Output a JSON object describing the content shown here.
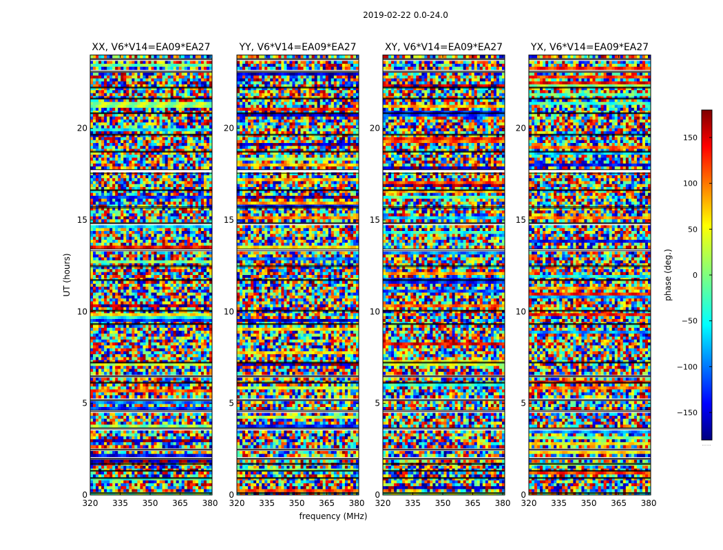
{
  "figure": {
    "suptitle": "2019-02-22 0.0-24.0"
  },
  "chart_data": {
    "type": "heatmap",
    "title": "2019-02-22 0.0-24.0",
    "xlabel": "frequency (MHz)",
    "ylabel": "UT (hours)",
    "xlim": [
      320,
      381
    ],
    "ylim": [
      0,
      24
    ],
    "xticks": [
      320,
      335,
      350,
      365,
      380
    ],
    "yticks": [
      0,
      5,
      10,
      15,
      20
    ],
    "panels": [
      {
        "title": "XX, V6*V14=EA09*EA27",
        "pol": "XX"
      },
      {
        "title": "YY, V6*V14=EA09*EA27",
        "pol": "YY"
      },
      {
        "title": "XY, V6*V14=EA09*EA27",
        "pol": "XY"
      },
      {
        "title": "YX, V6*V14=EA09*EA27",
        "pol": "YX"
      }
    ],
    "colorbar": {
      "label": "phase (deg.)",
      "colormap": "jet",
      "range": [
        -180,
        180
      ],
      "ticks": [
        -150,
        -100,
        -50,
        0,
        50,
        100,
        150
      ],
      "tick_labels": [
        "−150",
        "−100",
        "−50",
        "0",
        "50",
        "100",
        "150"
      ],
      "under_label": "......"
    },
    "data_gaps_hours": [
      [
        0.08,
        0.12
      ],
      [
        0.9,
        0.95
      ],
      [
        1.3,
        1.34
      ],
      [
        1.68,
        1.72
      ],
      [
        1.95,
        2.0
      ],
      [
        2.45,
        2.5
      ],
      [
        3.6,
        3.66
      ],
      [
        4.55,
        4.62
      ],
      [
        5.15,
        5.2
      ],
      [
        6.1,
        6.15
      ],
      [
        6.45,
        6.5
      ],
      [
        7.2,
        7.25
      ],
      [
        9.3,
        9.35
      ],
      [
        10.02,
        10.08
      ],
      [
        11.7,
        11.75
      ],
      [
        12.45,
        12.52
      ],
      [
        13.32,
        13.42
      ],
      [
        14.8,
        14.85
      ],
      [
        15.65,
        15.72
      ],
      [
        16.6,
        16.65
      ],
      [
        17.55,
        17.75
      ],
      [
        18.7,
        18.75
      ],
      [
        19.62,
        19.68
      ],
      [
        20.8,
        20.85
      ],
      [
        21.6,
        21.65
      ],
      [
        22.2,
        22.25
      ],
      [
        23.05,
        23.12
      ],
      [
        23.75,
        23.8
      ]
    ]
  }
}
